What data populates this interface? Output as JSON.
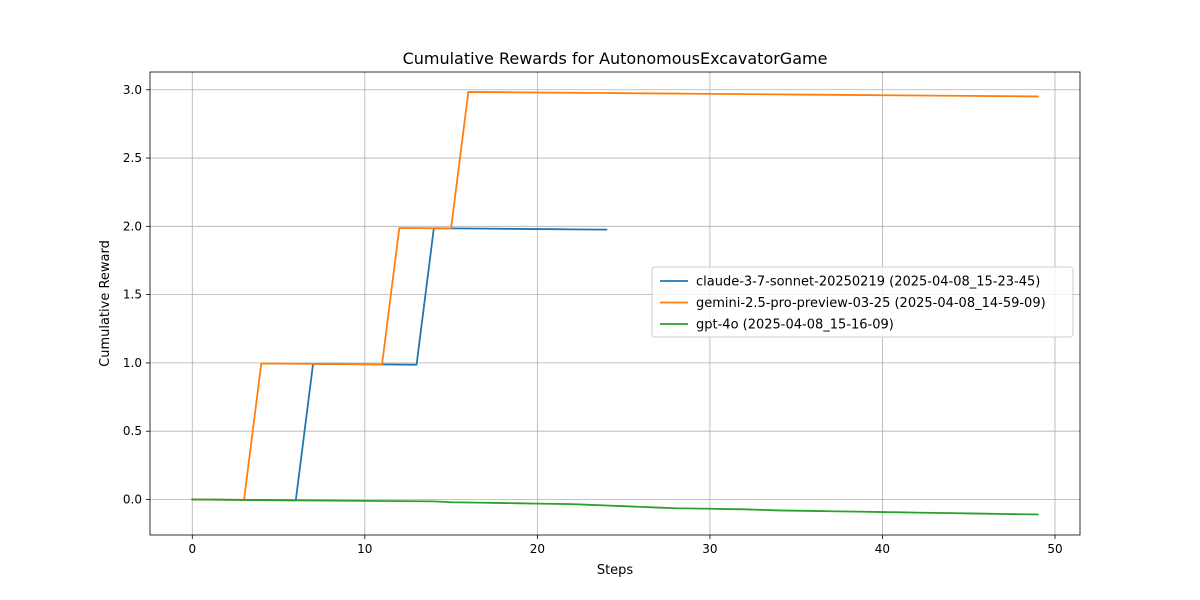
{
  "chart_data": {
    "type": "line",
    "title": "Cumulative Rewards for AutonomousExcavatorGame",
    "xlabel": "Steps",
    "ylabel": "Cumulative Reward",
    "xlim": [
      -2.45,
      51.45
    ],
    "ylim": [
      -0.26,
      3.13
    ],
    "xticks": [
      0,
      10,
      20,
      30,
      40,
      50
    ],
    "xtick_labels": [
      "0",
      "10",
      "20",
      "30",
      "40",
      "50"
    ],
    "yticks": [
      0.0,
      0.5,
      1.0,
      1.5,
      2.0,
      2.5,
      3.0
    ],
    "ytick_labels": [
      "0.0",
      "0.5",
      "1.0",
      "1.5",
      "2.0",
      "2.5",
      "3.0"
    ],
    "grid": true,
    "legend_position": "center-right",
    "series": [
      {
        "name": "claude-3-7-sonnet-20250219 (2025-04-08_15-23-45)",
        "color": "#1f77b4",
        "x": [
          0,
          1,
          2,
          3,
          4,
          5,
          6,
          7,
          8,
          9,
          10,
          11,
          12,
          13,
          14,
          15,
          16,
          17,
          18,
          19,
          20,
          21,
          22,
          23,
          24
        ],
        "y": [
          0.0,
          -0.001,
          -0.002,
          -0.003,
          -0.004,
          -0.005,
          -0.006,
          0.993,
          0.992,
          0.991,
          0.99,
          0.989,
          0.988,
          0.987,
          1.986,
          1.985,
          1.984,
          1.983,
          1.982,
          1.981,
          1.98,
          1.979,
          1.978,
          1.977,
          1.976
        ]
      },
      {
        "name": "gemini-2.5-pro-preview-03-25 (2025-04-08_14-59-09)",
        "color": "#ff7f0e",
        "x": [
          0,
          1,
          2,
          3,
          4,
          5,
          6,
          7,
          8,
          9,
          10,
          11,
          12,
          13,
          14,
          15,
          16,
          17,
          18,
          19,
          20,
          21,
          22,
          23,
          24,
          25,
          26,
          27,
          28,
          29,
          30,
          31,
          32,
          33,
          34,
          35,
          36,
          37,
          38,
          39,
          40,
          41,
          42,
          43,
          44,
          45,
          46,
          47,
          48,
          49
        ],
        "y": [
          0.0,
          -0.001,
          -0.002,
          -0.003,
          0.996,
          0.995,
          0.994,
          0.993,
          0.992,
          0.991,
          0.99,
          0.989,
          1.988,
          1.987,
          1.986,
          1.985,
          2.984,
          2.983,
          2.982,
          2.981,
          2.98,
          2.979,
          2.978,
          2.977,
          2.976,
          2.975,
          2.974,
          2.973,
          2.972,
          2.971,
          2.97,
          2.969,
          2.968,
          2.967,
          2.966,
          2.965,
          2.964,
          2.963,
          2.962,
          2.961,
          2.96,
          2.959,
          2.958,
          2.957,
          2.956,
          2.955,
          2.954,
          2.953,
          2.952,
          2.951
        ]
      },
      {
        "name": "gpt-4o (2025-04-08_15-16-09)",
        "color": "#2ca02c",
        "x": [
          0,
          1,
          2,
          3,
          4,
          5,
          6,
          7,
          8,
          9,
          10,
          11,
          12,
          13,
          14,
          15,
          16,
          17,
          18,
          19,
          20,
          21,
          22,
          23,
          24,
          25,
          26,
          27,
          28,
          29,
          30,
          31,
          32,
          33,
          34,
          35,
          36,
          37,
          38,
          39,
          40,
          41,
          42,
          43,
          44,
          45,
          46,
          47,
          48,
          49
        ],
        "y": [
          0.0,
          -0.001,
          -0.002,
          -0.003,
          -0.004,
          -0.005,
          -0.006,
          -0.007,
          -0.008,
          -0.009,
          -0.01,
          -0.011,
          -0.012,
          -0.013,
          -0.014,
          -0.02,
          -0.022,
          -0.024,
          -0.026,
          -0.028,
          -0.03,
          -0.032,
          -0.034,
          -0.039,
          -0.044,
          -0.049,
          -0.054,
          -0.059,
          -0.064,
          -0.066,
          -0.068,
          -0.07,
          -0.072,
          -0.076,
          -0.08,
          -0.082,
          -0.084,
          -0.086,
          -0.088,
          -0.09,
          -0.092,
          -0.094,
          -0.096,
          -0.098,
          -0.1,
          -0.102,
          -0.104,
          -0.106,
          -0.108,
          -0.11
        ]
      }
    ]
  }
}
